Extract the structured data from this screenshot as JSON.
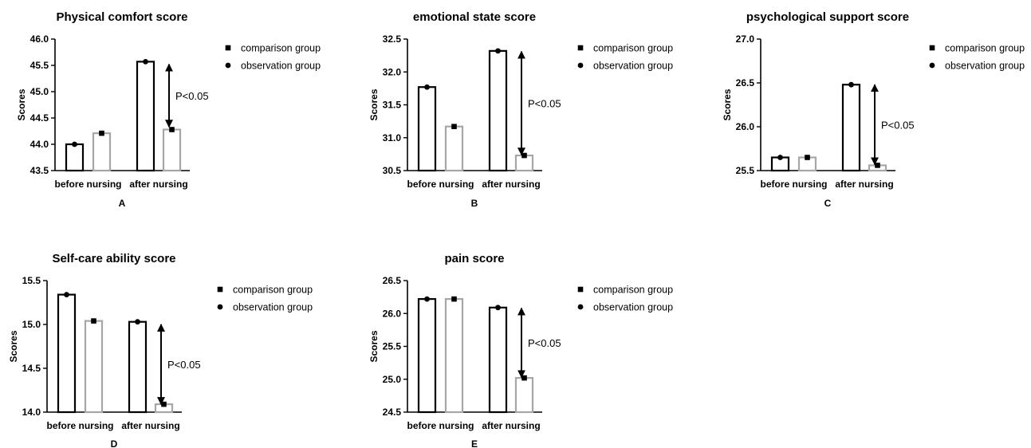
{
  "legend": {
    "comparison": "comparison group",
    "observation": "observation group"
  },
  "colors": {
    "observation_bar": "#000000",
    "comparison_bar": "#a6a6a6",
    "marker": "#000000",
    "axis": "#000000"
  },
  "chart_data": [
    {
      "panel": "A",
      "type": "bar",
      "title": "Physical comfort score",
      "ylabel": "Scores",
      "categories": [
        "before nursing",
        "after nursing"
      ],
      "ylim": [
        43.5,
        46.0
      ],
      "yticks": [
        "43.5",
        "44.0",
        "44.5",
        "45.0",
        "45.5",
        "46.0"
      ],
      "series": [
        {
          "name": "observation group",
          "marker": "circle",
          "values": [
            44.0,
            45.57
          ]
        },
        {
          "name": "comparison group",
          "marker": "square",
          "values": [
            44.21,
            44.28
          ]
        }
      ],
      "annotation": {
        "text": "P<0.05",
        "between": [
          45.52,
          44.33
        ]
      }
    },
    {
      "panel": "B",
      "type": "bar",
      "title": "emotional state score",
      "ylabel": "Scores",
      "categories": [
        "before nursing",
        "after nursing"
      ],
      "ylim": [
        30.5,
        32.5
      ],
      "yticks": [
        "30.5",
        "31.0",
        "31.5",
        "32.0",
        "32.5"
      ],
      "series": [
        {
          "name": "observation group",
          "marker": "circle",
          "values": [
            31.77,
            32.32
          ]
        },
        {
          "name": "comparison group",
          "marker": "square",
          "values": [
            31.17,
            30.73
          ]
        }
      ],
      "annotation": {
        "text": "P<0.05",
        "between": [
          32.31,
          30.74
        ]
      }
    },
    {
      "panel": "C",
      "type": "bar",
      "title": "psychological support score",
      "ylabel": "Scores",
      "categories": [
        "before nursing",
        "after nursing"
      ],
      "ylim": [
        25.5,
        27.0
      ],
      "yticks": [
        "25.5",
        "26.0",
        "26.5",
        "27.0"
      ],
      "series": [
        {
          "name": "observation group",
          "marker": "circle",
          "values": [
            25.65,
            26.48
          ]
        },
        {
          "name": "comparison group",
          "marker": "square",
          "values": [
            25.65,
            25.56
          ]
        }
      ],
      "annotation": {
        "text": "P<0.05",
        "between": [
          26.48,
          25.57
        ]
      }
    },
    {
      "panel": "D",
      "type": "bar",
      "title": "Self-care ability score",
      "ylabel": "Scores",
      "categories": [
        "before nursing",
        "after nursing"
      ],
      "ylim": [
        14.0,
        15.5
      ],
      "yticks": [
        "14.0",
        "14.5",
        "15.0",
        "15.5"
      ],
      "series": [
        {
          "name": "observation group",
          "marker": "circle",
          "values": [
            15.34,
            15.03
          ]
        },
        {
          "name": "comparison group",
          "marker": "square",
          "values": [
            15.04,
            14.09
          ]
        }
      ],
      "annotation": {
        "text": "P<0.05",
        "between": [
          15.0,
          14.09
        ]
      }
    },
    {
      "panel": "E",
      "type": "bar",
      "title": "pain score",
      "ylabel": "Scores",
      "categories": [
        "before nursing",
        "after nursing"
      ],
      "ylim": [
        24.5,
        26.5
      ],
      "yticks": [
        "24.5",
        "25.0",
        "25.5",
        "26.0",
        "26.5"
      ],
      "series": [
        {
          "name": "observation group",
          "marker": "circle",
          "values": [
            26.22,
            26.09
          ]
        },
        {
          "name": "comparison group",
          "marker": "square",
          "values": [
            26.22,
            25.02
          ]
        }
      ],
      "annotation": {
        "text": "P<0.05",
        "between": [
          26.08,
          25.03
        ]
      }
    }
  ]
}
